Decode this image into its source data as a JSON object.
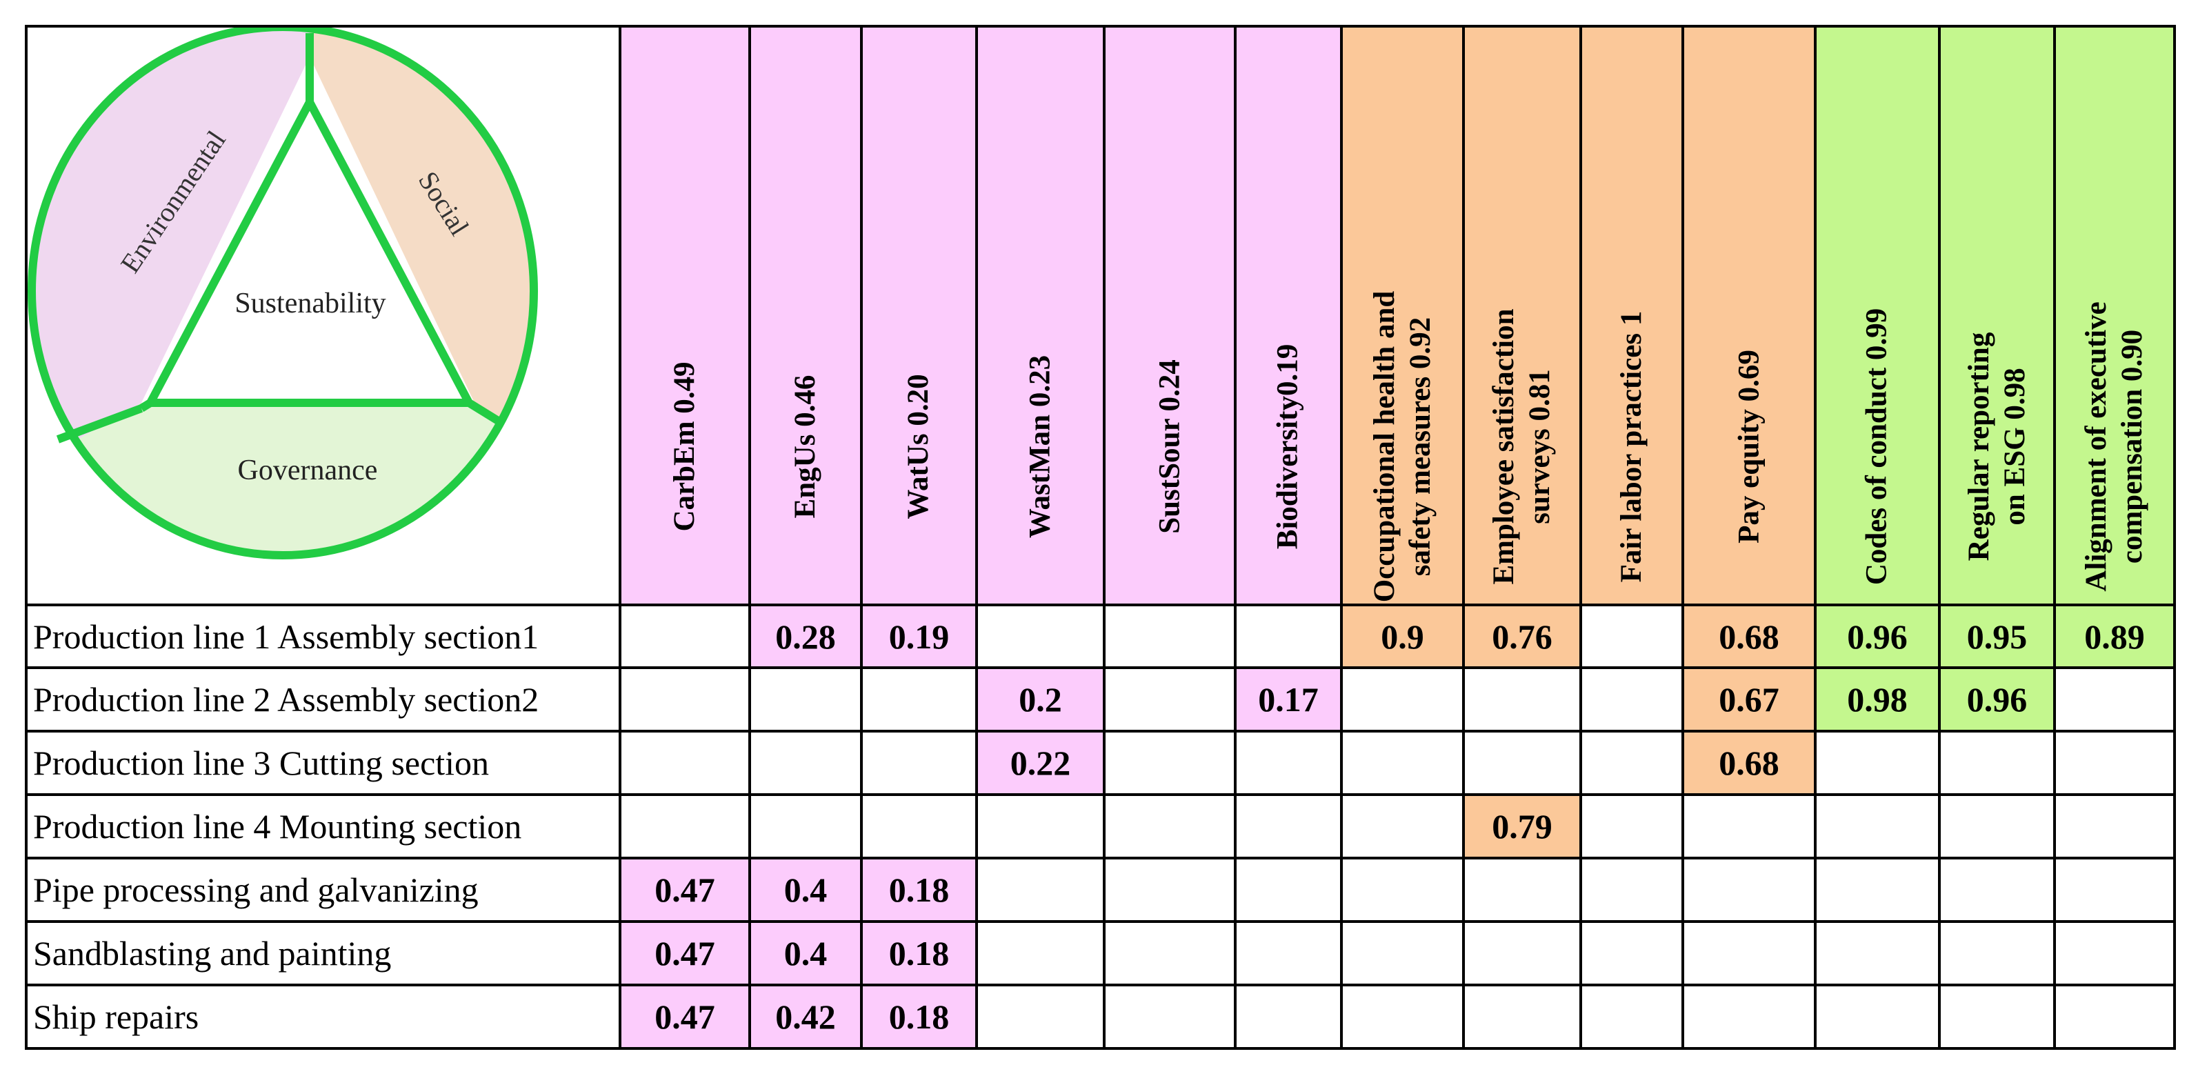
{
  "diagram": {
    "center_label": "Sustenability",
    "segments": [
      {
        "label": "Environmental",
        "color": "#f0d8f0"
      },
      {
        "label": "Social",
        "color": "#f5dcc6"
      },
      {
        "label": "Governance",
        "color": "#e3f5d6"
      }
    ],
    "outline_color": "#22cc44"
  },
  "groups": [
    {
      "name": "environmental",
      "color": "#fcccfc"
    },
    {
      "name": "social",
      "color": "#fbc899"
    },
    {
      "name": "governance",
      "color": "#c4f78e"
    }
  ],
  "columns": [
    {
      "lines": [
        "CarbEm 0.49"
      ],
      "group": 0
    },
    {
      "lines": [
        "EngUs 0.46"
      ],
      "group": 0
    },
    {
      "lines": [
        "WatUs 0.20"
      ],
      "group": 0
    },
    {
      "lines": [
        "WastMan 0.23"
      ],
      "group": 0
    },
    {
      "lines": [
        "SustSour 0.24"
      ],
      "group": 0
    },
    {
      "lines": [
        "Biodiversity0.19"
      ],
      "group": 0
    },
    {
      "lines": [
        "Occupational health and",
        "safety measures 0.92"
      ],
      "group": 1
    },
    {
      "lines": [
        "Employee satisfaction",
        "surveys 0.81"
      ],
      "group": 1
    },
    {
      "lines": [
        "Fair labor practices 1"
      ],
      "group": 1
    },
    {
      "lines": [
        "Pay equity 0.69"
      ],
      "group": 1
    },
    {
      "lines": [
        "Codes of conduct 0.99"
      ],
      "group": 2
    },
    {
      "lines": [
        "Regular reporting",
        "on ESG 0.98"
      ],
      "group": 2
    },
    {
      "lines": [
        "Alignment of executive",
        "compensation 0.90"
      ],
      "group": 2
    }
  ],
  "rows": [
    {
      "label": "Production line 1 Assembly section1",
      "cells": [
        "",
        "0.28",
        "0.19",
        "",
        "",
        "",
        "0.9",
        "0.76",
        "",
        "0.68",
        "0.96",
        "0.95",
        "0.89"
      ]
    },
    {
      "label": "Production line 2 Assembly section2",
      "cells": [
        "",
        "",
        "",
        "0.2",
        "",
        "0.17",
        "",
        "",
        "",
        "0.67",
        "0.98",
        "0.96",
        ""
      ]
    },
    {
      "label": "Production line 3 Cutting section",
      "cells": [
        "",
        "",
        "",
        "0.22",
        "",
        "",
        "",
        "",
        "",
        "0.68",
        "",
        "",
        ""
      ]
    },
    {
      "label": "Production line 4 Mounting section",
      "cells": [
        "",
        "",
        "",
        "",
        "",
        "",
        "",
        "0.79",
        "",
        "",
        "",
        "",
        ""
      ]
    },
    {
      "label": "Pipe processing and galvanizing",
      "cells": [
        "0.47",
        "0.4",
        "0.18",
        "",
        "",
        "",
        "",
        "",
        "",
        "",
        "",
        "",
        ""
      ]
    },
    {
      "label": "Sandblasting and painting",
      "cells": [
        "0.47",
        "0.4",
        "0.18",
        "",
        "",
        "",
        "",
        "",
        "",
        "",
        "",
        "",
        ""
      ]
    },
    {
      "label": "Ship repairs",
      "cells": [
        "0.47",
        "0.42",
        "0.18",
        "",
        "",
        "",
        "",
        "",
        "",
        "",
        "",
        "",
        ""
      ]
    }
  ]
}
